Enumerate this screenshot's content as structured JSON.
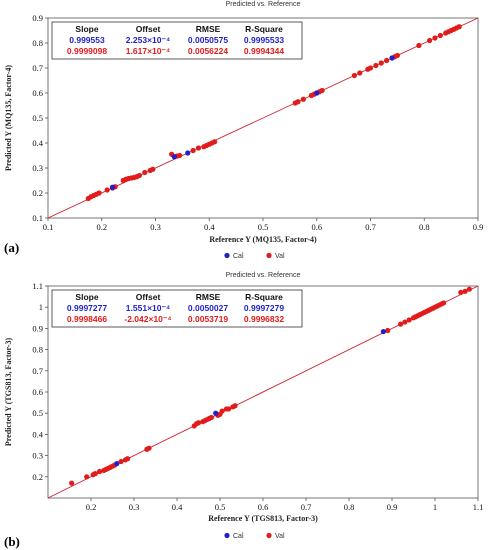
{
  "chart_data": [
    {
      "type": "scatter",
      "panel_label": "(a)",
      "title": "Predicted vs. Reference",
      "xlabel": "Reference Y (MQ135, Factor-4)",
      "ylabel": "Predicted Y (MQ135, Factor-4)",
      "xlim": [
        0.1,
        0.9
      ],
      "ylim": [
        0.1,
        0.9
      ],
      "x_ticks": [
        "0.1",
        "0.2",
        "0.3",
        "0.4",
        "0.5",
        "0.6",
        "0.7",
        "0.8",
        "0.9"
      ],
      "y_ticks": [
        "0.1",
        "0.2",
        "0.3",
        "0.4",
        "0.5",
        "0.6",
        "0.7",
        "0.8",
        "0.9"
      ],
      "grid": false,
      "legend_position": "bottom-center",
      "stats_table": {
        "headers": [
          "Slope",
          "Offset",
          "RMSE",
          "R-Square"
        ],
        "rows": [
          {
            "series": "Cal",
            "color": "#1f1fcc",
            "values": [
              "0.999553",
              "2.253×10⁻⁴",
              "0.0050575",
              "0.9995533"
            ]
          },
          {
            "series": "Val",
            "color": "#e21b1b",
            "values": [
              "0.9999098",
              "1.617×10⁻⁴",
              "0.0056224",
              "0.9994344"
            ]
          }
        ]
      },
      "series": [
        {
          "name": "Cal",
          "color": "#1f1fcc",
          "points": [
            [
              0.335,
              0.345
            ],
            [
              0.36,
              0.36
            ],
            [
              0.22,
              0.223
            ],
            [
              0.6,
              0.6
            ],
            [
              0.74,
              0.74
            ]
          ]
        },
        {
          "name": "Val",
          "color": "#e21b1b",
          "points": [
            [
              0.175,
              0.178
            ],
            [
              0.18,
              0.185
            ],
            [
              0.185,
              0.19
            ],
            [
              0.19,
              0.195
            ],
            [
              0.195,
              0.2
            ],
            [
              0.21,
              0.212
            ],
            [
              0.22,
              0.22
            ],
            [
              0.225,
              0.225
            ],
            [
              0.24,
              0.25
            ],
            [
              0.245,
              0.255
            ],
            [
              0.25,
              0.258
            ],
            [
              0.255,
              0.26
            ],
            [
              0.26,
              0.262
            ],
            [
              0.265,
              0.265
            ],
            [
              0.27,
              0.27
            ],
            [
              0.28,
              0.282
            ],
            [
              0.29,
              0.29
            ],
            [
              0.295,
              0.295
            ],
            [
              0.33,
              0.355
            ],
            [
              0.34,
              0.348
            ],
            [
              0.345,
              0.35
            ],
            [
              0.37,
              0.37
            ],
            [
              0.38,
              0.38
            ],
            [
              0.39,
              0.385
            ],
            [
              0.395,
              0.39
            ],
            [
              0.4,
              0.395
            ],
            [
              0.405,
              0.4
            ],
            [
              0.41,
              0.405
            ],
            [
              0.56,
              0.56
            ],
            [
              0.565,
              0.565
            ],
            [
              0.575,
              0.575
            ],
            [
              0.59,
              0.59
            ],
            [
              0.595,
              0.595
            ],
            [
              0.6,
              0.6
            ],
            [
              0.605,
              0.605
            ],
            [
              0.61,
              0.61
            ],
            [
              0.67,
              0.67
            ],
            [
              0.68,
              0.68
            ],
            [
              0.695,
              0.695
            ],
            [
              0.7,
              0.7
            ],
            [
              0.71,
              0.71
            ],
            [
              0.72,
              0.72
            ],
            [
              0.73,
              0.73
            ],
            [
              0.745,
              0.745
            ],
            [
              0.75,
              0.75
            ],
            [
              0.79,
              0.79
            ],
            [
              0.81,
              0.81
            ],
            [
              0.82,
              0.82
            ],
            [
              0.83,
              0.83
            ],
            [
              0.84,
              0.84
            ],
            [
              0.845,
              0.845
            ],
            [
              0.85,
              0.85
            ],
            [
              0.855,
              0.855
            ],
            [
              0.86,
              0.86
            ],
            [
              0.865,
              0.865
            ]
          ]
        }
      ]
    },
    {
      "type": "scatter",
      "panel_label": "(b)",
      "title": "Predicted vs. Reference",
      "xlabel": "Reference Y (TGS813, Factor-3)",
      "ylabel": "Predicted Y (TGS813, Factor-3)",
      "xlim": [
        0.1,
        1.1
      ],
      "ylim": [
        0.1,
        1.1
      ],
      "x_ticks": [
        "0.2",
        "0.3",
        "0.4",
        "0.5",
        "0.6",
        "0.7",
        "0.8",
        "0.9",
        "1",
        "1.1"
      ],
      "y_ticks": [
        "0.2",
        "0.3",
        "0.4",
        "0.5",
        "0.6",
        "0.7",
        "0.8",
        "0.9",
        "1",
        "1.1"
      ],
      "grid": false,
      "legend_position": "bottom-center",
      "stats_table": {
        "headers": [
          "Slope",
          "Offset",
          "RMSE",
          "R-Square"
        ],
        "rows": [
          {
            "series": "Cal",
            "color": "#1f1fcc",
            "values": [
              "0.9997277",
              "1.551×10⁻⁴",
              "0.0050027",
              "0.9997279"
            ]
          },
          {
            "series": "Val",
            "color": "#e21b1b",
            "values": [
              "0.9998466",
              "-2.042×10⁻⁴",
              "0.0053719",
              "0.9996832"
            ]
          }
        ]
      },
      "series": [
        {
          "name": "Cal",
          "color": "#1f1fcc",
          "points": [
            [
              0.49,
              0.5
            ],
            [
              0.88,
              0.885
            ],
            [
              0.26,
              0.262
            ]
          ]
        },
        {
          "name": "Val",
          "color": "#e21b1b",
          "points": [
            [
              0.155,
              0.17
            ],
            [
              0.19,
              0.2
            ],
            [
              0.205,
              0.21
            ],
            [
              0.21,
              0.215
            ],
            [
              0.22,
              0.225
            ],
            [
              0.23,
              0.23
            ],
            [
              0.235,
              0.235
            ],
            [
              0.24,
              0.24
            ],
            [
              0.245,
              0.245
            ],
            [
              0.25,
              0.25
            ],
            [
              0.255,
              0.255
            ],
            [
              0.27,
              0.272
            ],
            [
              0.28,
              0.28
            ],
            [
              0.285,
              0.285
            ],
            [
              0.33,
              0.33
            ],
            [
              0.335,
              0.335
            ],
            [
              0.44,
              0.44
            ],
            [
              0.445,
              0.45
            ],
            [
              0.45,
              0.455
            ],
            [
              0.46,
              0.46
            ],
            [
              0.465,
              0.465
            ],
            [
              0.47,
              0.47
            ],
            [
              0.475,
              0.475
            ],
            [
              0.48,
              0.48
            ],
            [
              0.495,
              0.49
            ],
            [
              0.5,
              0.495
            ],
            [
              0.505,
              0.51
            ],
            [
              0.515,
              0.52
            ],
            [
              0.52,
              0.52
            ],
            [
              0.53,
              0.53
            ],
            [
              0.535,
              0.535
            ],
            [
              0.89,
              0.89
            ],
            [
              0.92,
              0.92
            ],
            [
              0.93,
              0.93
            ],
            [
              0.94,
              0.94
            ],
            [
              0.95,
              0.95
            ],
            [
              0.955,
              0.955
            ],
            [
              0.96,
              0.96
            ],
            [
              0.965,
              0.965
            ],
            [
              0.97,
              0.97
            ],
            [
              0.975,
              0.975
            ],
            [
              0.98,
              0.98
            ],
            [
              0.985,
              0.985
            ],
            [
              0.99,
              0.99
            ],
            [
              0.995,
              0.995
            ],
            [
              1.0,
              1.0
            ],
            [
              1.005,
              1.005
            ],
            [
              1.01,
              1.01
            ],
            [
              1.015,
              1.015
            ],
            [
              1.02,
              1.02
            ],
            [
              1.06,
              1.07
            ],
            [
              1.07,
              1.075
            ],
            [
              1.08,
              1.085
            ]
          ]
        }
      ]
    }
  ]
}
